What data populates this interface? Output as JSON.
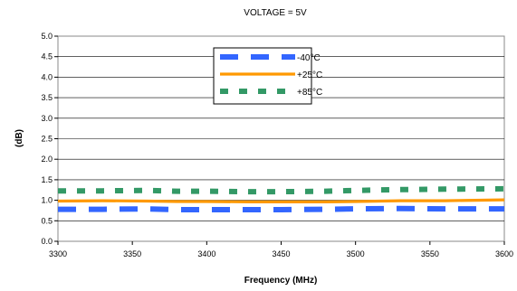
{
  "chart_data": {
    "type": "line",
    "title": "VOLTAGE = 5V",
    "xlabel": "Frequency (MHz)",
    "ylabel": "(dB)",
    "xlim": [
      3300,
      3600
    ],
    "ylim": [
      0.0,
      5.0
    ],
    "x_ticks": [
      "3300",
      "3350",
      "3400",
      "3450",
      "3500",
      "3550",
      "3600"
    ],
    "y_ticks": [
      "0.0",
      "0.5",
      "1.0",
      "1.5",
      "2.0",
      "2.5",
      "3.0",
      "3.5",
      "4.0",
      "4.5",
      "5.0"
    ],
    "grid": "horizontal",
    "legend_position": "top-center",
    "series": [
      {
        "name": "-40°C",
        "color": "#3366ff",
        "style": "dashed",
        "x": [
          3300,
          3330,
          3360,
          3380,
          3400,
          3430,
          3450,
          3480,
          3500,
          3530,
          3560,
          3600
        ],
        "y": [
          0.78,
          0.78,
          0.79,
          0.77,
          0.77,
          0.77,
          0.77,
          0.78,
          0.79,
          0.8,
          0.79,
          0.79
        ]
      },
      {
        "name": "+25°C",
        "color": "#ff9900",
        "style": "solid",
        "x": [
          3300,
          3330,
          3360,
          3380,
          3400,
          3430,
          3450,
          3480,
          3500,
          3530,
          3560,
          3600
        ],
        "y": [
          0.98,
          0.99,
          0.98,
          0.97,
          0.97,
          0.96,
          0.96,
          0.96,
          0.97,
          0.99,
          0.99,
          1.01
        ]
      },
      {
        "name": "+85°C",
        "color": "#339966",
        "style": "dotted",
        "x": [
          3300,
          3330,
          3360,
          3380,
          3400,
          3430,
          3450,
          3480,
          3500,
          3530,
          3560,
          3600
        ],
        "y": [
          1.23,
          1.23,
          1.24,
          1.22,
          1.22,
          1.21,
          1.21,
          1.22,
          1.24,
          1.26,
          1.27,
          1.28
        ]
      }
    ]
  }
}
